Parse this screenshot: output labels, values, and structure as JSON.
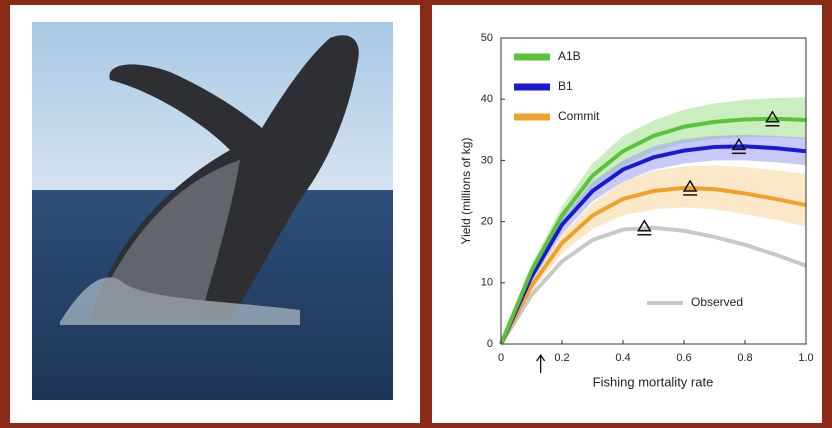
{
  "chart_data": {
    "type": "line",
    "xlabel": "Fishing mortality rate",
    "ylabel": "Yield (millions of kg)",
    "x": [
      0,
      0.1,
      0.2,
      0.3,
      0.4,
      0.5,
      0.6,
      0.7,
      0.8,
      0.9,
      1.0
    ],
    "xlim": [
      0,
      1.0
    ],
    "xticks": [
      0,
      0.2,
      0.4,
      0.6,
      0.8,
      {
        "value": 1.0,
        "label": "1.0"
      }
    ],
    "ylim": [
      0,
      50
    ],
    "yticks": [
      0,
      10,
      20,
      30,
      40,
      50
    ],
    "current_rate": 0.13,
    "series": [
      {
        "name": "A1B",
        "color": "#5cc23c",
        "band_color": "#9fe08a",
        "legend": "upper left",
        "values": [
          0,
          12,
          21,
          27.5,
          31.5,
          34,
          35.5,
          36.3,
          36.7,
          36.8,
          36.6
        ],
        "upper": [
          0,
          13,
          22.5,
          29.5,
          34,
          36.5,
          38.3,
          39.3,
          39.9,
          40.2,
          40.3
        ],
        "lower": [
          0,
          11,
          19.5,
          25.5,
          29,
          31.5,
          32.8,
          33.5,
          33.8,
          33.8,
          33.5
        ],
        "peak": {
          "x": 0.89,
          "y": 36.8
        }
      },
      {
        "name": "B1",
        "color": "#1a1ad0",
        "band_color": "#9a9cf0",
        "legend": "upper left",
        "values": [
          0,
          11,
          19.5,
          25,
          28.5,
          30.5,
          31.6,
          32.2,
          32.3,
          32,
          31.5
        ],
        "upper": [
          0,
          12,
          20.5,
          26.5,
          30,
          32.3,
          33.5,
          34,
          34.2,
          34,
          33.7
        ],
        "lower": [
          0,
          10,
          18,
          23.3,
          26.5,
          28.5,
          29.5,
          30,
          30,
          29.7,
          29.2
        ],
        "peak": {
          "x": 0.78,
          "y": 32.3
        }
      },
      {
        "name": "Commit",
        "color": "#eda22a",
        "band_color": "#f8d59a",
        "legend": "upper left",
        "values": [
          0,
          9.5,
          16.5,
          21,
          23.7,
          25,
          25.5,
          25.3,
          24.6,
          23.7,
          22.7
        ],
        "upper": [
          0,
          10.5,
          18,
          23,
          26.5,
          28.3,
          29,
          29.2,
          28.9,
          28.4,
          27.8
        ],
        "lower": [
          0,
          8.5,
          14.8,
          18.8,
          21,
          22,
          22.3,
          22,
          21.2,
          20.3,
          19.2
        ],
        "peak": {
          "x": 0.62,
          "y": 25.5
        }
      },
      {
        "name": "Observed",
        "color": "#c8c8c8",
        "legend": "lower right",
        "values": [
          0,
          8,
          13.5,
          17,
          18.7,
          19,
          18.5,
          17.5,
          16.2,
          14.6,
          12.8
        ],
        "peak": {
          "x": 0.47,
          "y": 19
        }
      }
    ]
  }
}
